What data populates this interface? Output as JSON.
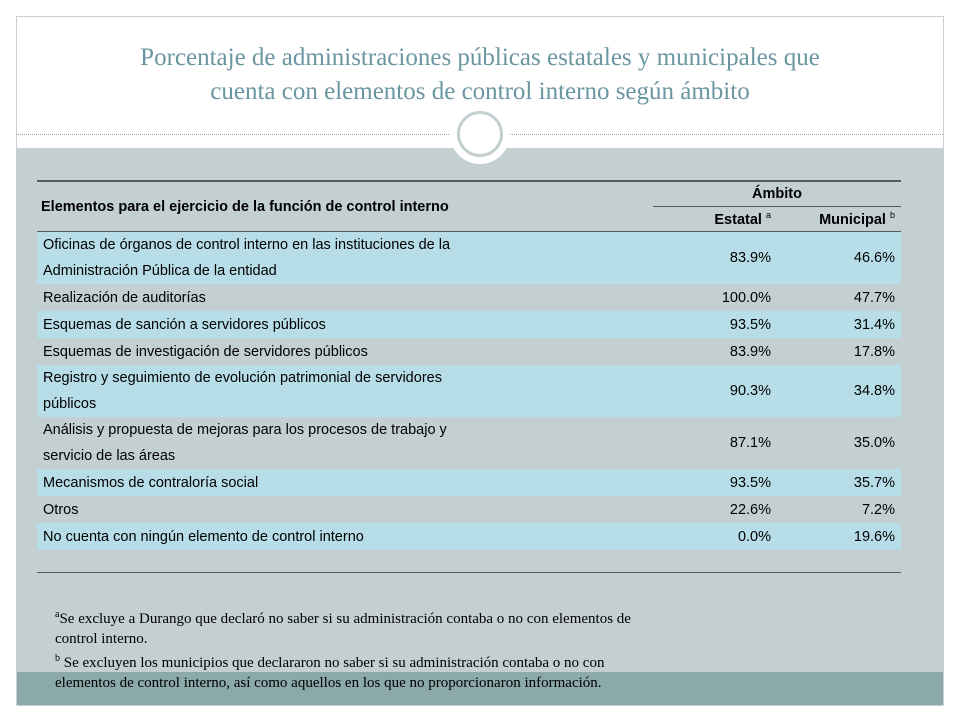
{
  "slide": {
    "title_line1": "Porcentaje de administraciones públicas estatales y municipales que",
    "title_line2": "cuenta con elementos de control interno según ámbito"
  },
  "table": {
    "row_header": "Elementos para el ejercicio de la función de control interno",
    "group_header": "Ámbito",
    "col_estatal": "Estatal",
    "col_estatal_sup": "a",
    "col_municipal": "Municipal",
    "col_municipal_sup": "b",
    "rows": [
      {
        "label_line1": "Oficinas de órganos de control interno en las instituciones de la",
        "label_line2": "Administración Pública de la entidad",
        "estatal": "83.9%",
        "municipal": "46.6%"
      },
      {
        "label_line1": "Realización de auditorías",
        "label_line2": "",
        "estatal": "100.0%",
        "municipal": "47.7%"
      },
      {
        "label_line1": "Esquemas de sanción a servidores públicos",
        "label_line2": "",
        "estatal": "93.5%",
        "municipal": "31.4%"
      },
      {
        "label_line1": "Esquemas de investigación de servidores públicos",
        "label_line2": "",
        "estatal": "83.9%",
        "municipal": "17.8%"
      },
      {
        "label_line1": "Registro y seguimiento de evolución patrimonial de servidores",
        "label_line2": "públicos",
        "estatal": "90.3%",
        "municipal": "34.8%"
      },
      {
        "label_line1": "Análisis y propuesta de mejoras para los procesos de trabajo y",
        "label_line2": "servicio de las áreas",
        "estatal": "87.1%",
        "municipal": "35.0%"
      },
      {
        "label_line1": "Mecanismos de contraloría social",
        "label_line2": "",
        "estatal": "93.5%",
        "municipal": "35.7%"
      },
      {
        "label_line1": "Otros",
        "label_line2": "",
        "estatal": "22.6%",
        "municipal": "7.2%"
      },
      {
        "label_line1": "No cuenta con ningún elemento de control interno",
        "label_line2": "",
        "estatal": "0.0%",
        "municipal": "19.6%"
      }
    ]
  },
  "notes": {
    "note_a_mark": "a",
    "note_a_line1": "Se excluye a Durango que declaró no saber si su administración contaba o no con elementos de",
    "note_a_line2": "control interno.",
    "note_b_mark": "b",
    "note_b_line1": " Se excluyen  los municipios que declararon no saber si su administración contaba o no con",
    "note_b_line2": "elementos de control interno, así como aquellos en los que no proporcionaron información."
  },
  "colors": {
    "title": "#6a96a1",
    "panel": "#c4cfd2",
    "row_highlight": "#b7dde8",
    "bottom_band": "#8ba9aa"
  }
}
